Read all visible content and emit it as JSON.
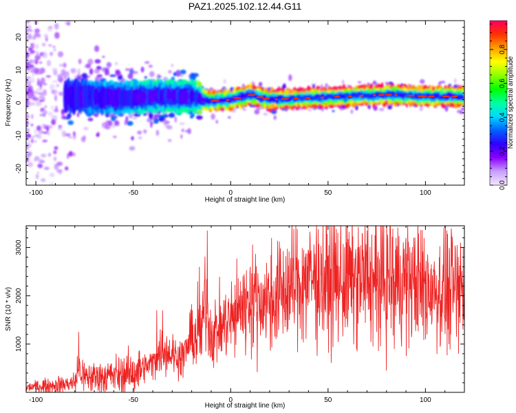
{
  "title": "PAZ1.2025.102.12.44.G11",
  "colors": {
    "snr_line": "#ee2222",
    "axes": "#000000"
  },
  "chart_data": [
    {
      "type": "heatmap",
      "xlabel": "Height of straight line (km)",
      "ylabel": "Frequency (Hz)",
      "xlim": [
        -105,
        120
      ],
      "ylim": [
        -25,
        25
      ],
      "xticks": [
        -100,
        -50,
        0,
        50,
        100
      ],
      "yticks": [
        -20,
        -10,
        0,
        10,
        20
      ],
      "colorbar": {
        "label": "Normalized spectral amplitude",
        "range": [
          0,
          0.97
        ],
        "ticks": [
          0.0,
          0.2,
          0.4,
          0.6,
          0.8
        ],
        "stops": [
          "#f2e6ff",
          "#c8a0ff",
          "#8a00ff",
          "#3000ff",
          "#0060ff",
          "#00d8ff",
          "#00ffa0",
          "#00ff00",
          "#90ff00",
          "#ffff00",
          "#ffa000",
          "#ff3000",
          "#ff0060"
        ]
      },
      "ridge": {
        "x": [
          -105,
          -80,
          -60,
          -40,
          -20,
          -10,
          0,
          10,
          20,
          40,
          60,
          80,
          100,
          120
        ],
        "center_hz": [
          2.5,
          2.0,
          1.5,
          2.0,
          2.0,
          0.5,
          1.0,
          2.5,
          1.0,
          1.5,
          2.0,
          2.5,
          2.0,
          2.0
        ],
        "peak_amplitude": [
          0.15,
          0.3,
          0.4,
          0.45,
          0.45,
          0.85,
          0.8,
          0.85,
          0.9,
          0.95,
          0.9,
          0.9,
          0.9,
          0.85
        ]
      }
    },
    {
      "type": "line",
      "xlabel": "Height of straight line (km)",
      "ylabel": "SNR (10 * v/v)",
      "xlim": [
        -105,
        120
      ],
      "ylim": [
        0,
        3450
      ],
      "xticks": [
        -100,
        -50,
        0,
        50,
        100
      ],
      "yticks": [
        1000,
        2000,
        3000
      ],
      "series": [
        {
          "envelope_x": [
            -105,
            -90,
            -80,
            -78,
            -75,
            -60,
            -50,
            -40,
            -35,
            -30,
            -25,
            -20,
            -15,
            -13,
            -10,
            0,
            10,
            20,
            30,
            40,
            50,
            60,
            70,
            80,
            90,
            100,
            110,
            120
          ],
          "envelope_y": [
            100,
            150,
            200,
            500,
            300,
            350,
            400,
            600,
            900,
            800,
            700,
            1100,
            1200,
            2000,
            1200,
            1500,
            1900,
            1900,
            2150,
            2350,
            2300,
            2300,
            2300,
            2350,
            2300,
            2200,
            2100,
            2150
          ],
          "spikes": [
            [
              -78,
              1250
            ],
            [
              -38,
              1700
            ],
            [
              -35,
              1700
            ],
            [
              -21,
              1650
            ],
            [
              -17,
              2300
            ],
            [
              -16,
              2600
            ],
            [
              -12,
              3350
            ],
            [
              -3,
              1800
            ],
            [
              5,
              2300
            ],
            [
              10,
              2600
            ],
            [
              40,
              2900
            ],
            [
              44,
              3150
            ],
            [
              68,
              2950
            ],
            [
              70,
              3350
            ],
            [
              75,
              3300
            ],
            [
              78,
              3150
            ],
            [
              82,
              3350
            ],
            [
              90,
              3200
            ],
            [
              103,
              2650
            ],
            [
              111,
              3350
            ],
            [
              118,
              3100
            ]
          ],
          "dips": [
            [
              60,
              1350
            ],
            [
              75,
              1250
            ],
            [
              80,
              450
            ],
            [
              84,
              900
            ],
            [
              100,
              1100
            ],
            [
              112,
              1000
            ],
            [
              117,
              800
            ]
          ]
        }
      ]
    }
  ]
}
